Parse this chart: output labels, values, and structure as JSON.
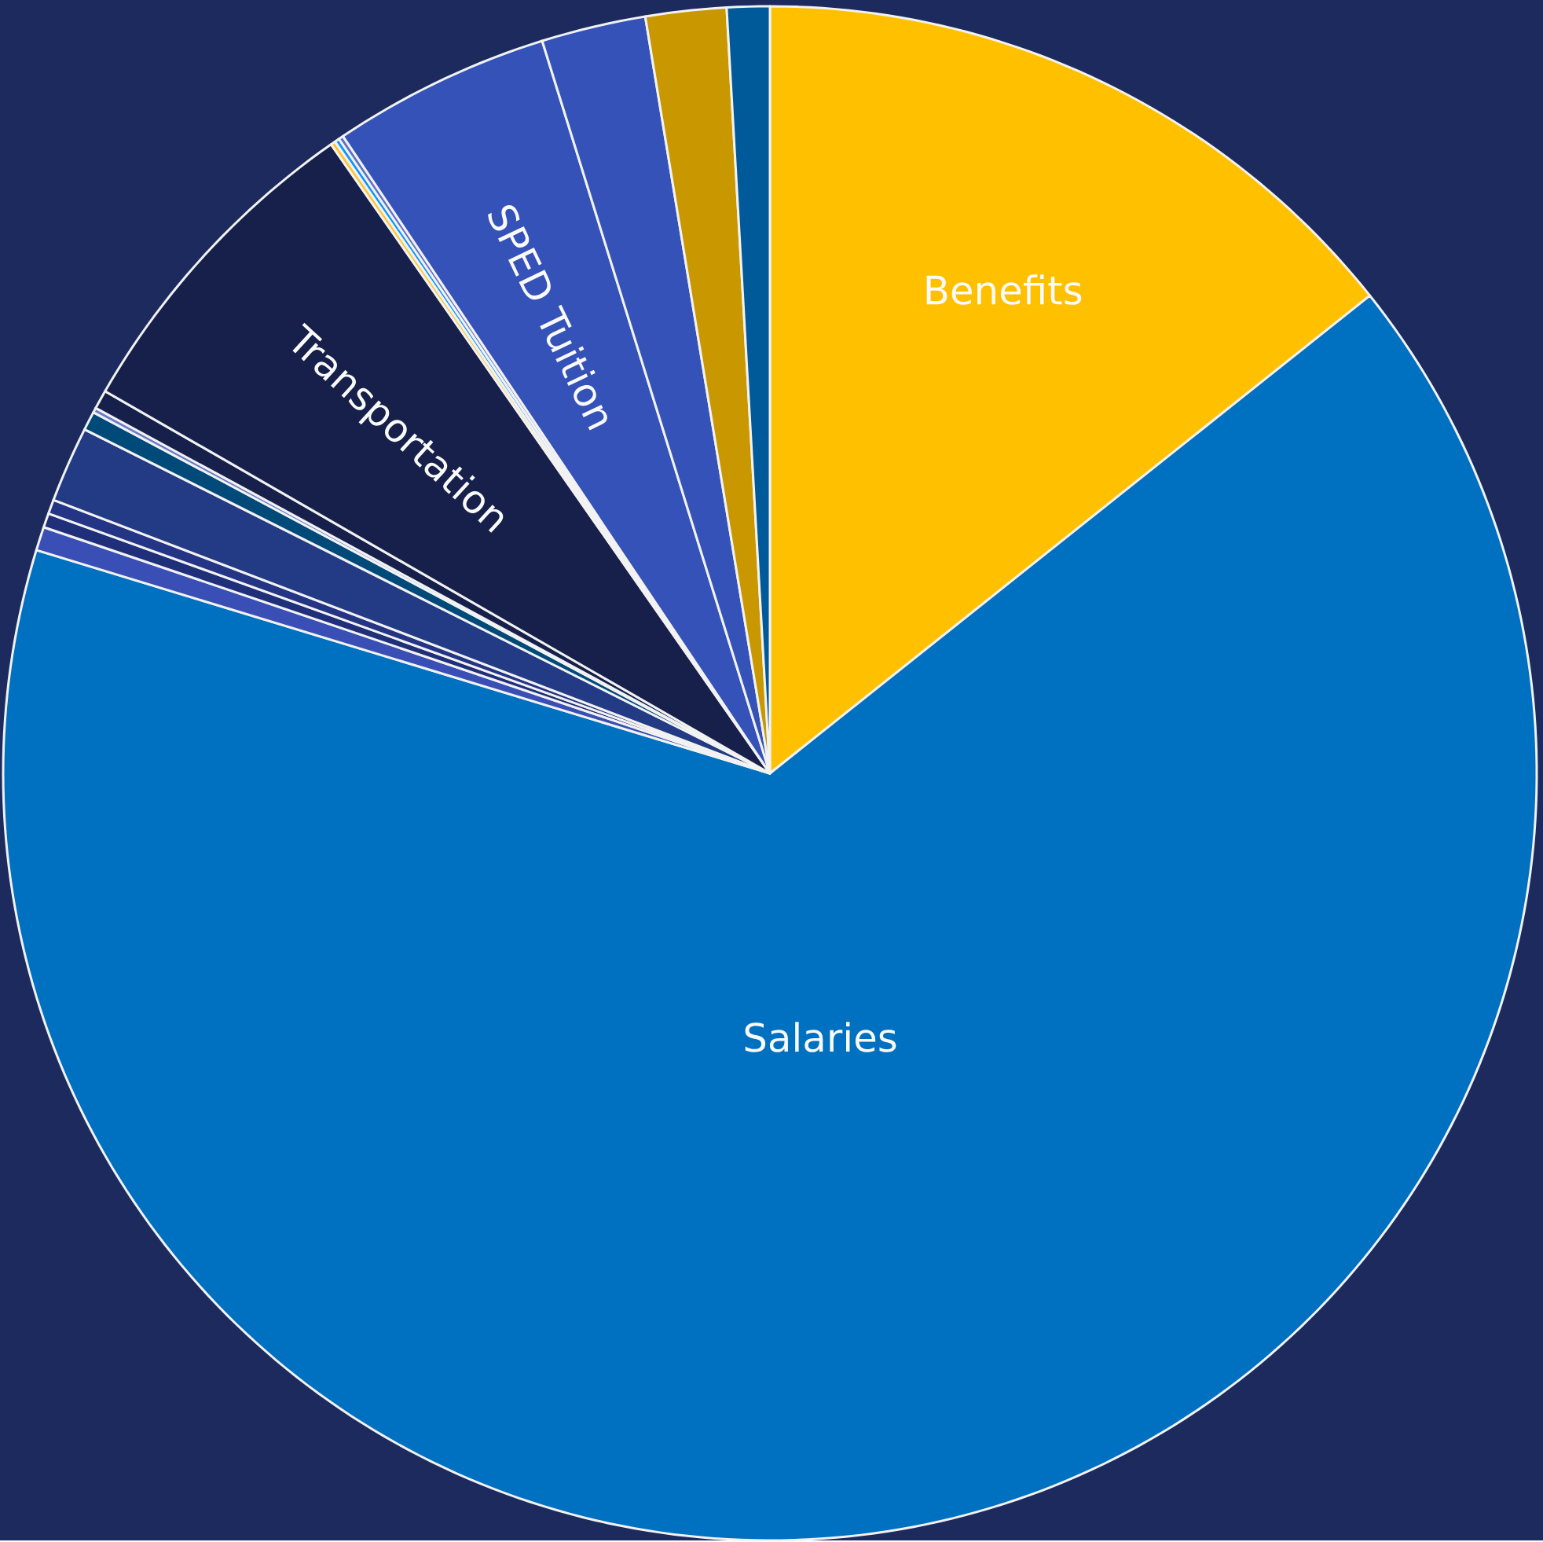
{
  "chart_data": {
    "type": "pie",
    "categories": [
      "Benefits",
      "Salaries",
      null,
      null,
      null,
      null,
      null,
      null,
      null,
      "Transportation",
      null,
      null,
      null,
      "SPED Tuition",
      null,
      null,
      null
    ],
    "values": [
      14.3,
      65.4,
      0.5,
      0.3,
      0.3,
      1.6,
      0.4,
      0.1,
      0.4,
      7.0,
      0.1,
      0.1,
      0.1,
      4.6,
      2.2,
      1.7,
      0.9
    ],
    "colors": [
      "#ffc000",
      "#0070c0",
      "#3a4fb5",
      "#1f2f7a",
      "#243585",
      "#233a85",
      "#004a7a",
      "#6a7ac8",
      "#16204a",
      "#16204a",
      "#ffc52e",
      "#0a96ff",
      "#6070c8",
      "#3452b8",
      "#3452b8",
      "#c99700",
      "#005a9a"
    ]
  }
}
